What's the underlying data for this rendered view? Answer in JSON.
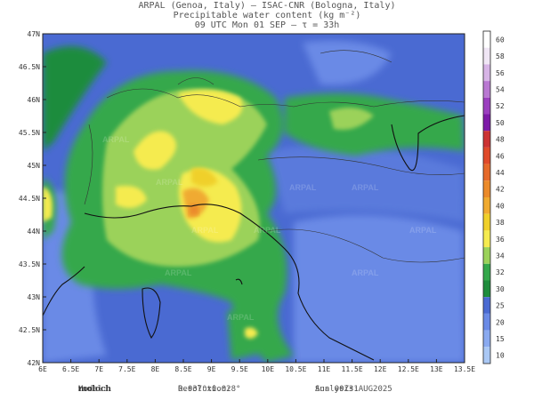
{
  "header": {
    "line1": "ARPAL (Genoa, Italy)  —  ISAC-CNR (Bologna, Italy)",
    "line2": "Precipitable water content (kg m⁻²)",
    "line3": "09 UTC Mon 01 SEP  —  τ = 33h"
  },
  "map": {
    "lat_labels": [
      "47N",
      "46.5N",
      "46N",
      "45.5N",
      "45N",
      "44.5N",
      "44N",
      "43.5N",
      "43N",
      "42.5N",
      "42N"
    ],
    "lon_labels": [
      "6E",
      "6.5E",
      "7E",
      "7.5E",
      "8E",
      "8.5E",
      "9E",
      "9.5E",
      "10E",
      "10.5E",
      "11E",
      "11.5E",
      "12E",
      "12.5E",
      "13E",
      "13.5E"
    ],
    "watermark": "ARPAL"
  },
  "colorbar": {
    "levels": [
      "60",
      "58",
      "56",
      "54",
      "52",
      "50",
      "48",
      "46",
      "44",
      "42",
      "40",
      "38",
      "36",
      "34",
      "32",
      "30",
      "25",
      "20",
      "15",
      "10"
    ],
    "colors": [
      "#ffffff",
      "#f0e6f5",
      "#d7b4e6",
      "#b978d2",
      "#9b3fbf",
      "#7d1aa8",
      "#cc3333",
      "#e04a2a",
      "#e66a2a",
      "#eb8a2a",
      "#f0aa30",
      "#f0d02a",
      "#f5eb50",
      "#9bd25a",
      "#34a84b",
      "#1e8c3c",
      "#4a6ad2",
      "#6a8ae6",
      "#8aaaf0",
      "#aac8f5"
    ]
  },
  "footer": {
    "model_label": "Model:",
    "model_name": "moloch",
    "resolution_label": "Resolution:",
    "resolution_value": "0.037°x0.028°",
    "analysis_label": "Analysis:",
    "analysis_value": "Sun 00Z31AUG2025"
  }
}
